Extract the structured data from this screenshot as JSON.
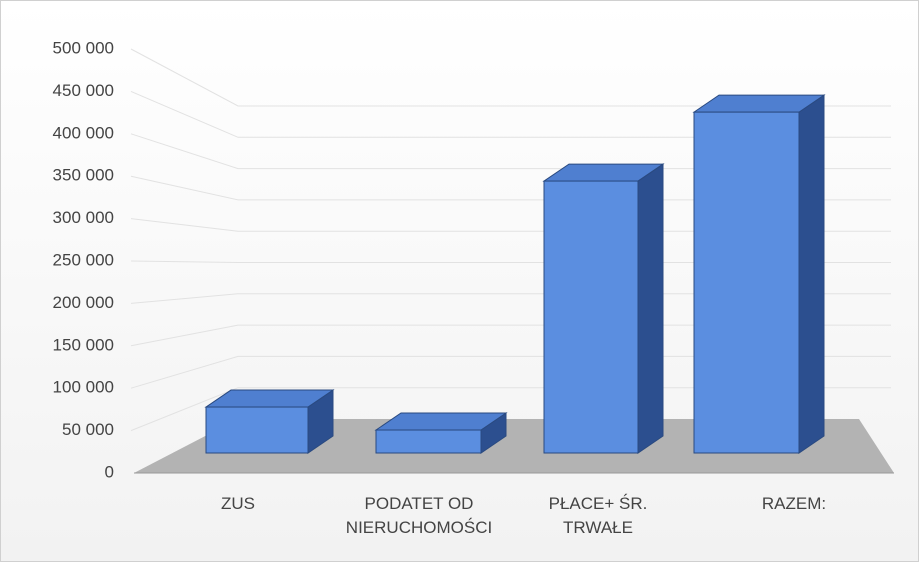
{
  "chart_data": {
    "type": "bar3d",
    "categories": [
      "ZUS",
      "PODATET OD NIERUCHOMOŚCI",
      "PŁACE+ ŚR. TRWAŁE",
      "RAZEM:"
    ],
    "values": [
      60000,
      30000,
      355000,
      445000
    ],
    "color": "#5b8ee0",
    "ylim": [
      0,
      500000
    ],
    "yticks": [
      0,
      {
        "value": 50000,
        "label": "50 000"
      },
      {
        "value": 100000,
        "label": "100 000"
      },
      {
        "value": 150000,
        "label": "150 000"
      },
      {
        "value": 200000,
        "label": "200 000"
      },
      {
        "value": 250000,
        "label": "250 000"
      },
      {
        "value": 300000,
        "label": "300 000"
      },
      {
        "value": 350000,
        "label": "350 000"
      },
      {
        "value": 400000,
        "label": "400 000"
      },
      {
        "value": 450000,
        "label": "450 000"
      },
      {
        "value": 500000,
        "label": "500 000"
      }
    ],
    "grid": true
  }
}
